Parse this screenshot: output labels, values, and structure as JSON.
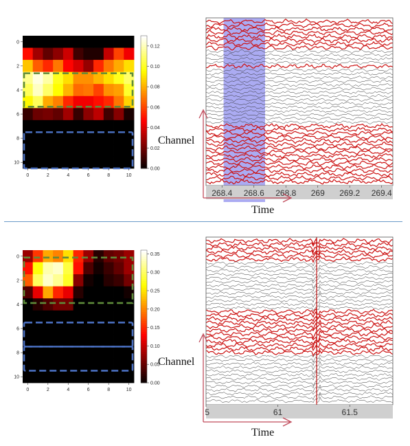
{
  "labels": {
    "channel": "Channel",
    "time": "Time"
  },
  "colors": {
    "highlight_trace": "#cc1111",
    "normal_trace": "#333333",
    "selection_band": "#9c9cf0",
    "event_marker": "#c62222",
    "green_box": "#5e8c3a",
    "blue_box": "#4a6fc0",
    "divider": "#6a9ac8"
  },
  "panels": [
    {
      "heatmap": {
        "y_ticks": [
          "0",
          "2",
          "4",
          "6",
          "8",
          "10"
        ],
        "x_ticks": [
          "0",
          "2",
          "4",
          "6",
          "8",
          "10"
        ],
        "colorbar_ticks": [
          "0.12",
          "0.10",
          "0.08",
          "0.06",
          "0.04",
          "0.02",
          "0.00"
        ],
        "vmax": 0.13,
        "green_rows": [
          3,
          5
        ],
        "blue_rows": [
          [
            7.5,
            10.5
          ]
        ],
        "values": [
          [
            0.0,
            0.0,
            0.0,
            0.0,
            0.0,
            0.0,
            0.0,
            0.0,
            0.0,
            0.0,
            0.0
          ],
          [
            0.05,
            0.03,
            0.018,
            0.026,
            0.038,
            0.012,
            0.006,
            0.006,
            0.036,
            0.06,
            0.045
          ],
          [
            0.085,
            0.065,
            0.055,
            0.07,
            0.048,
            0.04,
            0.028,
            0.055,
            0.07,
            0.08,
            0.09
          ],
          [
            0.115,
            0.126,
            0.118,
            0.1,
            0.09,
            0.075,
            0.075,
            0.082,
            0.09,
            0.1,
            0.11
          ],
          [
            0.108,
            0.122,
            0.11,
            0.096,
            0.082,
            0.068,
            0.07,
            0.06,
            0.075,
            0.078,
            0.102
          ],
          [
            0.095,
            0.108,
            0.08,
            0.072,
            0.055,
            0.045,
            0.045,
            0.05,
            0.055,
            0.07,
            0.088
          ],
          [
            0.01,
            0.02,
            0.022,
            0.018,
            0.03,
            0.01,
            0.026,
            0.035,
            0.012,
            0.025,
            0.005
          ],
          [
            0.0,
            0.0,
            0.0,
            0.0,
            0.0,
            0.0,
            0.0,
            0.0,
            0.0,
            0.0,
            0.0
          ],
          [
            0.0,
            0.0,
            0.0,
            0.0,
            0.0,
            0.0,
            0.0,
            0.0,
            0.0,
            0.0,
            0.0
          ],
          [
            0.0,
            0.0,
            0.0,
            0.0,
            0.0,
            0.0,
            0.0,
            0.0,
            0.0,
            0.0,
            0.0
          ],
          [
            0.0,
            0.0,
            0.0,
            0.0,
            0.0,
            0.0,
            0.0,
            0.0,
            0.0,
            0.0,
            0.0
          ]
        ]
      },
      "eeg": {
        "x_ticks": [
          "268.4",
          "268.6",
          "268.8",
          "269",
          "269.2",
          "269.4"
        ],
        "x_range": [
          268.3,
          269.47
        ],
        "selection": [
          268.41,
          268.67
        ],
        "event_time": null,
        "channel_count": 44,
        "red_channels": [
          0,
          1,
          2,
          3,
          4,
          5,
          6,
          7,
          12,
          28,
          29,
          30,
          31,
          32,
          33,
          34,
          35,
          36,
          37,
          38,
          39,
          40,
          41,
          42,
          43
        ]
      }
    },
    {
      "heatmap": {
        "y_ticks": [
          "0",
          "2",
          "4",
          "6",
          "8",
          "10"
        ],
        "x_ticks": [
          "0",
          "2",
          "4",
          "6",
          "8",
          "10"
        ],
        "colorbar_ticks": [
          "0.35",
          "0.30",
          "0.25",
          "0.20",
          "0.15",
          "0.10",
          "0.05",
          "0.00"
        ],
        "vmax": 0.36,
        "green_rows": [
          0.5,
          3.5
        ],
        "blue_rows": [
          [
            5.5,
            7.5
          ],
          [
            7.5,
            9.5
          ]
        ],
        "values": [
          [
            0.08,
            0.16,
            0.22,
            0.2,
            0.25,
            0.15,
            0.08,
            0.02,
            0.05,
            0.06,
            0.08
          ],
          [
            0.14,
            0.27,
            0.33,
            0.34,
            0.29,
            0.14,
            0.04,
            0.01,
            0.03,
            0.05,
            0.08
          ],
          [
            0.18,
            0.3,
            0.34,
            0.32,
            0.28,
            0.07,
            0.01,
            0.0,
            0.02,
            0.03,
            0.06
          ],
          [
            0.04,
            0.12,
            0.22,
            0.15,
            0.12,
            0.02,
            0.0,
            0.0,
            0.0,
            0.0,
            0.01
          ],
          [
            0.0,
            0.02,
            0.04,
            0.06,
            0.06,
            0.0,
            0.0,
            0.0,
            0.0,
            0.0,
            0.0
          ],
          [
            0.0,
            0.0,
            0.0,
            0.0,
            0.0,
            0.0,
            0.0,
            0.0,
            0.0,
            0.0,
            0.0
          ],
          [
            0.0,
            0.0,
            0.0,
            0.0,
            0.0,
            0.0,
            0.0,
            0.0,
            0.0,
            0.0,
            0.0
          ],
          [
            0.0,
            0.0,
            0.0,
            0.0,
            0.0,
            0.0,
            0.0,
            0.0,
            0.0,
            0.0,
            0.0
          ],
          [
            0.0,
            0.0,
            0.0,
            0.0,
            0.0,
            0.0,
            0.0,
            0.0,
            0.0,
            0.0,
            0.0
          ],
          [
            0.0,
            0.0,
            0.0,
            0.0,
            0.0,
            0.0,
            0.0,
            0.0,
            0.0,
            0.0,
            0.0
          ],
          [
            0.0,
            0.0,
            0.0,
            0.0,
            0.0,
            0.0,
            0.0,
            0.0,
            0.0,
            0.0,
            0.0
          ]
        ]
      },
      "eeg": {
        "x_ticks": [
          ".5",
          "61",
          "61.5"
        ],
        "x_range": [
          60.5,
          61.8
        ],
        "selection": null,
        "event_time": 61.27,
        "channel_count": 44,
        "red_channels": [
          0,
          1,
          2,
          3,
          4,
          5,
          19,
          20,
          21,
          22,
          23,
          24,
          25,
          26,
          27,
          28,
          29,
          30
        ]
      }
    }
  ]
}
